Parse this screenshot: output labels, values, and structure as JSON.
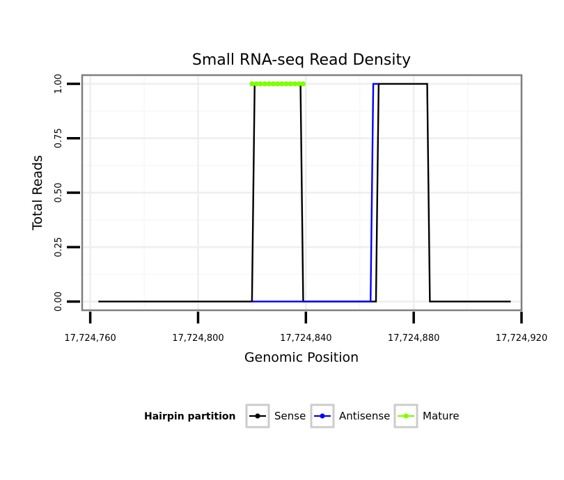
{
  "chart_data": {
    "type": "line",
    "title": "Small RNA-seq Read Density",
    "xlabel": "Genomic Position",
    "ylabel": "Total Reads",
    "xlim": [
      17724757,
      17724920
    ],
    "ylim": [
      -0.04,
      1.04
    ],
    "x_ticks": [
      17724760,
      17724800,
      17724840,
      17724880,
      17724920
    ],
    "x_tick_labels": [
      "17,724,760",
      "17,724,800",
      "17,724,840",
      "17,724,880",
      "17,724,920"
    ],
    "y_ticks": [
      0,
      0.25,
      0.5,
      0.75,
      1.0
    ],
    "y_tick_labels": [
      "0.00",
      "0.25",
      "0.50",
      "0.75",
      "1.00"
    ],
    "grid": true,
    "legend_position": "bottom",
    "legend_title": "Hairpin partition",
    "series": [
      {
        "name": "Sense",
        "color": "#000000",
        "points": [
          [
            17724763,
            0
          ],
          [
            17724820,
            0
          ],
          [
            17724821,
            1
          ],
          [
            17724838,
            1
          ],
          [
            17724839,
            0
          ],
          [
            17724866,
            0
          ],
          [
            17724867,
            1
          ],
          [
            17724885,
            1
          ],
          [
            17724886,
            0
          ],
          [
            17724916,
            0
          ]
        ]
      },
      {
        "name": "Antisense",
        "color": "#0000ff",
        "points": [
          [
            17724820,
            0
          ],
          [
            17724839,
            0
          ],
          [
            17724839,
            0
          ],
          [
            17724864,
            0
          ],
          [
            17724865,
            1
          ],
          [
            17724867,
            1
          ]
        ]
      },
      {
        "name": "Mature",
        "color": "#7fff00",
        "points": [
          [
            17724820,
            1
          ],
          [
            17724839,
            1
          ]
        ]
      }
    ]
  }
}
